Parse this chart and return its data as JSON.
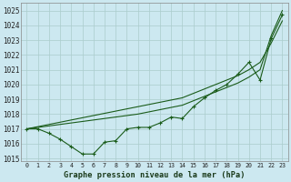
{
  "title": "Graphe pression niveau de la mer (hPa)",
  "bg_color": "#cce8f0",
  "grid_color": "#aacccc",
  "line_color": "#1a5c1a",
  "xlim": [
    -0.5,
    23.5
  ],
  "ylim": [
    1014.8,
    1025.5
  ],
  "yticks": [
    1015,
    1016,
    1017,
    1018,
    1019,
    1020,
    1021,
    1022,
    1023,
    1024,
    1025
  ],
  "xticks": [
    0,
    1,
    2,
    3,
    4,
    5,
    6,
    7,
    8,
    9,
    10,
    11,
    12,
    13,
    14,
    15,
    16,
    17,
    18,
    19,
    20,
    21,
    22,
    23
  ],
  "main_series": [
    1017.0,
    1017.0,
    1016.7,
    1016.3,
    1015.8,
    1015.3,
    1015.3,
    1016.1,
    1016.2,
    1017.0,
    1017.1,
    1017.1,
    1017.4,
    1017.8,
    1017.7,
    1018.5,
    1019.1,
    1019.6,
    1020.0,
    1020.7,
    1021.5,
    1020.3,
    1023.1,
    1024.7
  ],
  "line2": [
    1017.0,
    1017.15,
    1017.3,
    1017.45,
    1017.6,
    1017.75,
    1017.9,
    1018.05,
    1018.2,
    1018.35,
    1018.5,
    1018.65,
    1018.8,
    1018.95,
    1019.1,
    1019.4,
    1019.7,
    1020.0,
    1020.3,
    1020.6,
    1021.0,
    1021.5,
    1022.8,
    1024.3
  ],
  "line3": [
    1017.0,
    1017.1,
    1017.2,
    1017.3,
    1017.4,
    1017.5,
    1017.6,
    1017.7,
    1017.8,
    1017.9,
    1018.0,
    1018.15,
    1018.3,
    1018.45,
    1018.6,
    1018.9,
    1019.2,
    1019.5,
    1019.8,
    1020.1,
    1020.5,
    1021.0,
    1023.3,
    1025.0
  ]
}
